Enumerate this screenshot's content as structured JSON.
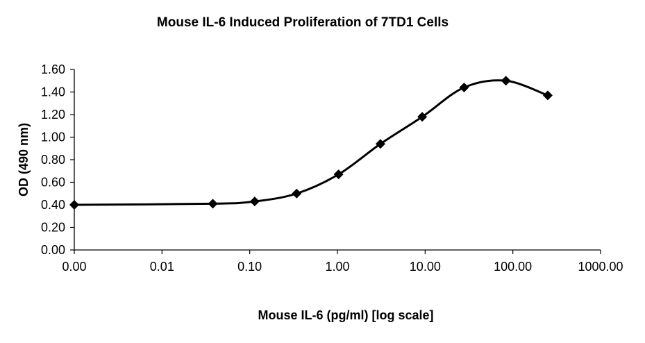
{
  "chart_data": {
    "type": "line",
    "title": "Mouse IL-6 Induced Proliferation of 7TD1 Cells",
    "xlabel": "Mouse IL-6 (pg/ml) [log scale]",
    "ylabel": "OD (490 nm)",
    "xscale": "log",
    "xlim": [
      0.001,
      1000
    ],
    "ylim": [
      0,
      1.6
    ],
    "x_tick_labels": [
      "0.00",
      "0.01",
      "0.10",
      "1.00",
      "10.00",
      "100.00",
      "1000.00"
    ],
    "x_tick_values": [
      0.001,
      0.01,
      0.1,
      1,
      10,
      100,
      1000
    ],
    "y_tick_labels": [
      "0.00",
      "0.20",
      "0.40",
      "0.60",
      "0.80",
      "1.00",
      "1.20",
      "1.40",
      "1.60"
    ],
    "y_tick_values": [
      0,
      0.2,
      0.4,
      0.6,
      0.8,
      1.0,
      1.2,
      1.4,
      1.6
    ],
    "grid": false,
    "legend": "none",
    "series": [
      {
        "name": "Mouse IL-6",
        "marker": "diamond",
        "color": "#000000",
        "smooth": true,
        "x": [
          0.001,
          0.038,
          0.114,
          0.343,
          1.03,
          3.09,
          9.26,
          27.8,
          83.3,
          250
        ],
        "y": [
          0.4,
          0.41,
          0.43,
          0.5,
          0.67,
          0.94,
          1.18,
          1.44,
          1.5,
          1.37
        ]
      }
    ]
  }
}
